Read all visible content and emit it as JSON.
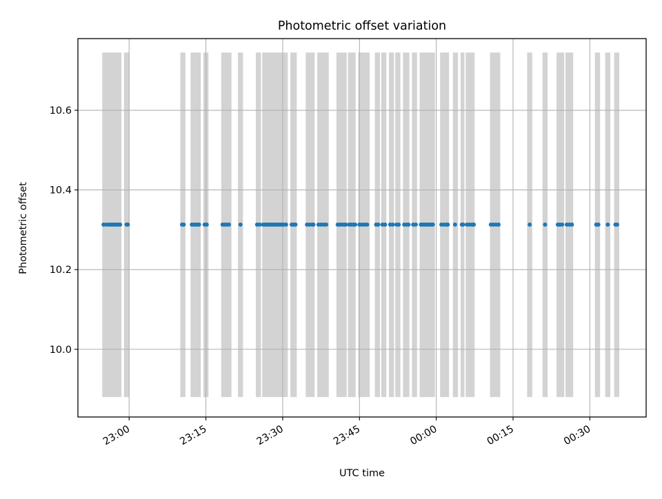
{
  "chart_data": {
    "type": "scatter",
    "title": "Photometric offset variation",
    "xlabel": "UTC time",
    "ylabel": "Photometric offset",
    "xlim": [
      "22:50",
      "00:41"
    ],
    "ylim": [
      9.83,
      10.78
    ],
    "grid": true,
    "x_ticks": [
      "23:00",
      "23:15",
      "23:30",
      "23:45",
      "00:00",
      "00:15",
      "00:30"
    ],
    "y_ticks": [
      "10.0",
      "10.2",
      "10.4",
      "10.6"
    ],
    "y_tick_values": [
      10.0,
      10.2,
      10.4,
      10.6
    ],
    "span_y_range": [
      9.88,
      10.745
    ],
    "exposure_spans": [
      [
        "22:54:45",
        "22:58:30"
      ],
      [
        "22:59:00",
        "23:00:00"
      ],
      [
        "23:10:00",
        "23:11:00"
      ],
      [
        "23:12:00",
        "23:14:00"
      ],
      [
        "23:14:30",
        "23:15:30"
      ],
      [
        "23:18:00",
        "23:20:00"
      ],
      [
        "23:21:15",
        "23:22:15"
      ],
      [
        "23:24:45",
        "23:25:45"
      ],
      [
        "23:26:00",
        "23:31:00"
      ],
      [
        "23:31:30",
        "23:32:45"
      ],
      [
        "23:34:30",
        "23:36:15"
      ],
      [
        "23:36:45",
        "23:39:00"
      ],
      [
        "23:40:30",
        "23:42:30"
      ],
      [
        "23:42:45",
        "23:44:15"
      ],
      [
        "23:44:45",
        "23:47:00"
      ],
      [
        "23:48:00",
        "23:49:00"
      ],
      [
        "23:49:15",
        "23:50:15"
      ],
      [
        "23:50:45",
        "23:51:45"
      ],
      [
        "23:52:00",
        "23:53:00"
      ],
      [
        "23:53:30",
        "23:54:45"
      ],
      [
        "23:55:15",
        "23:56:15"
      ],
      [
        "23:56:45",
        "23:59:45"
      ],
      [
        "00:00:45",
        "00:02:30"
      ],
      [
        "00:03:15",
        "00:04:15"
      ],
      [
        "00:04:45",
        "00:05:30"
      ],
      [
        "00:05:45",
        "00:07:30"
      ],
      [
        "00:10:30",
        "00:12:30"
      ],
      [
        "00:17:45",
        "00:18:45"
      ],
      [
        "00:20:45",
        "00:21:45"
      ],
      [
        "00:23:30",
        "00:25:00"
      ],
      [
        "00:25:15",
        "00:26:45"
      ],
      [
        "00:31:00",
        "00:32:00"
      ],
      [
        "00:33:00",
        "00:34:00"
      ],
      [
        "00:34:45",
        "00:35:45"
      ]
    ],
    "series": [
      {
        "color": "#1f77b4",
        "y": 10.313,
        "x": [
          "22:55:00",
          "22:55:30",
          "22:56:00",
          "22:56:20",
          "22:56:40",
          "22:57:00",
          "22:57:20",
          "22:57:40",
          "22:58:00",
          "22:58:15",
          "22:59:30",
          "22:59:45",
          "23:10:20",
          "23:10:40",
          "23:12:15",
          "23:12:40",
          "23:13:00",
          "23:13:20",
          "23:13:40",
          "23:14:45",
          "23:15:10",
          "23:18:15",
          "23:18:40",
          "23:19:05",
          "23:19:30",
          "23:21:45",
          "23:25:00",
          "23:25:30",
          "23:26:10",
          "23:26:30",
          "23:26:50",
          "23:27:10",
          "23:27:30",
          "23:27:50",
          "23:28:10",
          "23:28:30",
          "23:28:50",
          "23:29:10",
          "23:29:30",
          "23:29:50",
          "23:30:10",
          "23:30:40",
          "23:31:45",
          "23:32:10",
          "23:32:30",
          "23:34:45",
          "23:35:15",
          "23:35:45",
          "23:36:00",
          "23:37:00",
          "23:37:30",
          "23:38:00",
          "23:38:30",
          "23:40:45",
          "23:41:10",
          "23:41:35",
          "23:42:00",
          "23:42:20",
          "23:43:00",
          "23:43:25",
          "23:43:50",
          "23:44:10",
          "23:45:00",
          "23:45:30",
          "23:46:00",
          "23:46:30",
          "23:48:15",
          "23:48:40",
          "23:49:30",
          "23:50:00",
          "23:51:00",
          "23:51:30",
          "23:52:15",
          "23:52:40",
          "23:53:45",
          "23:54:15",
          "23:54:35",
          "23:55:30",
          "23:56:00",
          "23:57:00",
          "23:57:20",
          "23:57:40",
          "23:58:00",
          "23:58:20",
          "23:58:40",
          "23:59:00",
          "23:59:20",
          "00:01:00",
          "00:01:30",
          "00:02:00",
          "00:02:15",
          "00:03:40",
          "00:05:00",
          "00:05:15",
          "00:06:00",
          "00:06:30",
          "00:07:00",
          "00:07:20",
          "00:10:40",
          "00:11:10",
          "00:11:40",
          "00:12:10",
          "00:18:15",
          "00:21:15",
          "00:23:45",
          "00:24:10",
          "00:24:35",
          "00:25:30",
          "00:26:00",
          "00:26:30",
          "00:31:15",
          "00:31:40",
          "00:33:30",
          "00:35:00",
          "00:35:20"
        ]
      }
    ]
  }
}
